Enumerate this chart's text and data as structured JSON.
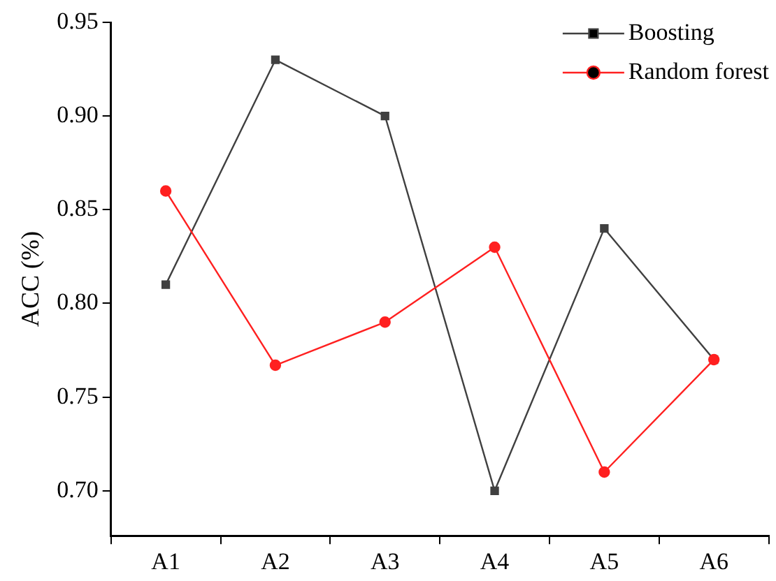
{
  "chart_data": {
    "type": "line",
    "ylabel": "ACC (%)",
    "categories": [
      "A1",
      "A2",
      "A3",
      "A4",
      "A5",
      "A6"
    ],
    "series": [
      {
        "name": "Boosting",
        "color": "#404040",
        "marker": "square",
        "values": [
          0.81,
          0.93,
          0.9,
          0.7,
          0.84,
          0.77
        ]
      },
      {
        "name": "Random forest",
        "color": "#ff2020",
        "marker": "circle",
        "values": [
          0.86,
          0.767,
          0.79,
          0.83,
          0.71,
          0.77
        ]
      }
    ],
    "ylim": [
      0.676,
      0.95
    ],
    "yticks": [
      {
        "value": 0.7,
        "label": "0.70"
      },
      0.75,
      {
        "value": 0.8,
        "label": "0.80"
      },
      0.85,
      {
        "value": 0.9,
        "label": "0.90"
      },
      0.95
    ],
    "legend": "top right",
    "grid": false
  }
}
